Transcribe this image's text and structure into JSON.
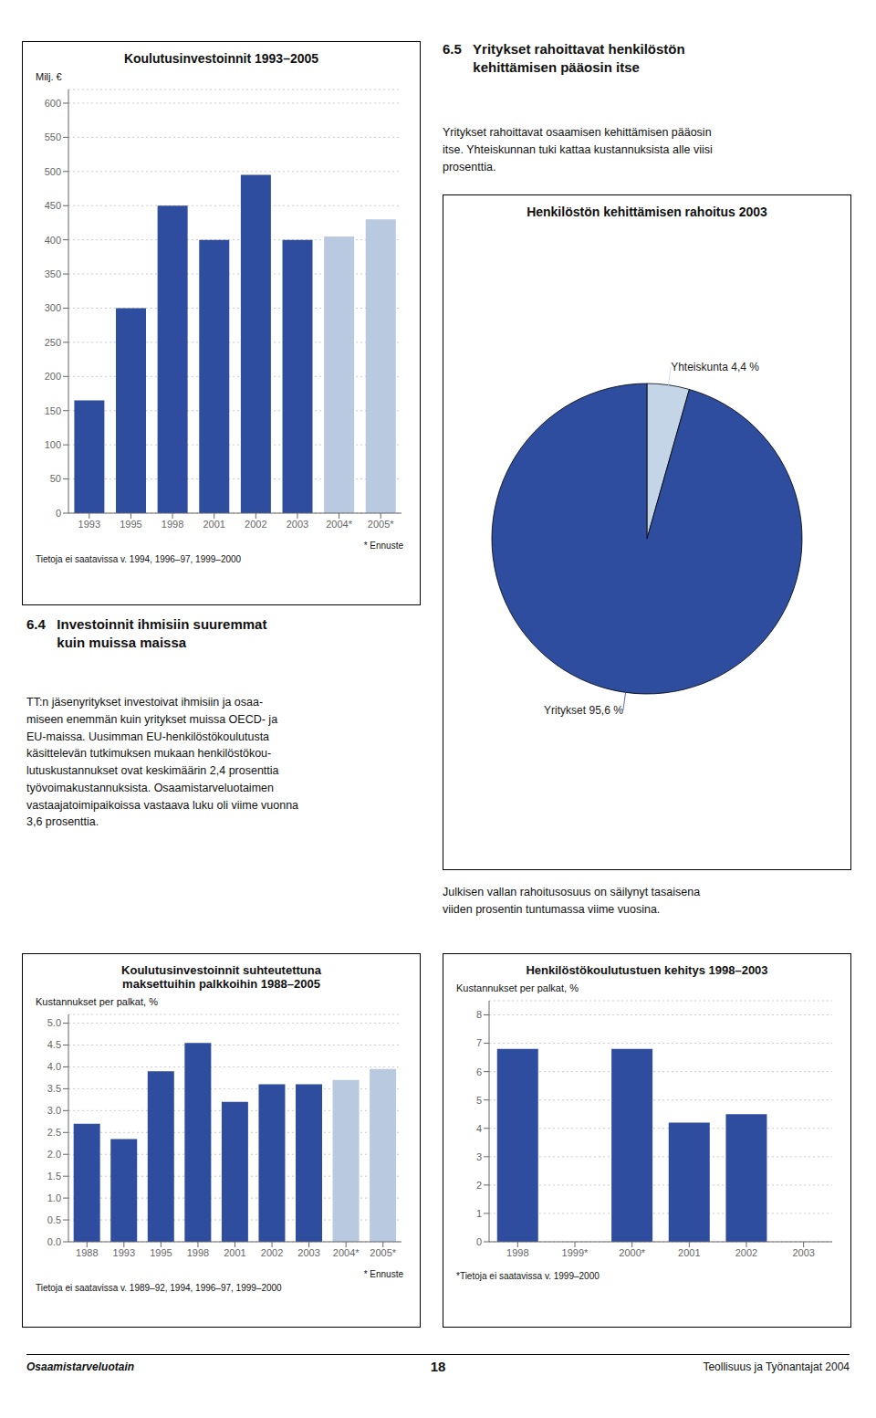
{
  "chart_data": [
    {
      "type": "bar",
      "title": "Koulutusinvestoinnit 1993–2005",
      "ylabel": "Milj. €",
      "categories": [
        "1993",
        "1995",
        "1998",
        "2001",
        "2002",
        "2003",
        "2004*",
        "2005*"
      ],
      "values": [
        165,
        300,
        450,
        400,
        495,
        400,
        405,
        430
      ],
      "colors": [
        "#2e4d9e",
        "#2e4d9e",
        "#2e4d9e",
        "#2e4d9e",
        "#2e4d9e",
        "#2e4d9e",
        "#b8c9e0",
        "#b8c9e0"
      ],
      "ylim": [
        0,
        620
      ],
      "yticks": [
        0,
        50,
        100,
        150,
        200,
        250,
        300,
        350,
        400,
        450,
        500,
        550,
        600
      ],
      "grid": true,
      "annotations": [
        "* Ennuste",
        "Tietoja ei saatavissa v. 1994, 1996–97, 1999–2000"
      ]
    },
    {
      "type": "pie",
      "title": "Henkilöstön kehittämisen rahoitus 2003",
      "categories": [
        "Yhteiskunta",
        "Yritykset"
      ],
      "values": [
        4.4,
        95.6
      ],
      "value_labels": [
        "Yhteiskunta 4,4 %",
        "Yritykset 95,6 %"
      ],
      "colors": [
        "#c5d5e8",
        "#2e4d9e"
      ],
      "data_labels": true
    },
    {
      "type": "bar",
      "title": "Koulutusinvestoinnit suhteutettuna\nmaksettuihin palkkoihin 1988–2005",
      "ylabel": "Kustannukset per palkat, %",
      "categories": [
        "1988",
        "1993",
        "1995",
        "1998",
        "2001",
        "2002",
        "2003",
        "2004*",
        "2005*"
      ],
      "values": [
        2.7,
        2.35,
        3.9,
        4.55,
        3.2,
        3.6,
        3.6,
        3.7,
        3.95
      ],
      "colors": [
        "#2e4d9e",
        "#2e4d9e",
        "#2e4d9e",
        "#2e4d9e",
        "#2e4d9e",
        "#2e4d9e",
        "#2e4d9e",
        "#b8c9e0",
        "#b8c9e0"
      ],
      "ylim": [
        0,
        5.2
      ],
      "yticks": [
        {
          "value": 0,
          "label": "0.0"
        },
        0.5,
        {
          "value": 1,
          "label": "1.0"
        },
        1.5,
        {
          "value": 2,
          "label": "2.0"
        },
        2.5,
        {
          "value": 3,
          "label": "3.0"
        },
        3.5,
        {
          "value": 4,
          "label": "4.0"
        },
        4.5,
        {
          "value": 5,
          "label": "5.0"
        }
      ],
      "grid": true,
      "annotations": [
        "* Ennuste",
        "Tietoja ei saatavissa v. 1989–92, 1994, 1996–97, 1999–2000"
      ]
    },
    {
      "type": "bar",
      "title": "Henkilöstökoulutustuen kehitys 1998–2003",
      "ylabel": "Kustannukset per palkat, %",
      "categories": [
        "1998",
        "1999*",
        "2000*",
        "2001",
        "2002",
        "2003"
      ],
      "values": [
        6.8,
        0,
        6.8,
        4.2,
        4.5,
        0
      ],
      "colors": [
        "#2e4d9e",
        "#2e4d9e",
        "#2e4d9e",
        "#2e4d9e",
        "#2e4d9e",
        "#2e4d9e"
      ],
      "ylim": [
        0,
        8.5
      ],
      "yticks": [
        0,
        1,
        2,
        3,
        4,
        5,
        6,
        7,
        8
      ],
      "grid": true,
      "annotations": [
        "*Tietoja ei saatavissa v. 1999–2000"
      ]
    }
  ],
  "annotations": [
    "6.5   Yritykset rahoittavat henkilöstön\n        kehittämisen pääosin itse",
    "Yritykset rahoittavat osaamisen kehittämisen pääosin\nitse. Yhteiskunnan tuki kattaa kustannuksista alle viisi\nprosenttia.",
    "6.4   Investoinnit ihmisiin suuremmat\n        kuin muissa maissa",
    "TT:n jäsenyritykset investoivat ihmisiin ja osaa-\nmiseen enemmän kuin yritykset muissa OECD- ja\nEU-maissa. Uusimman EU-henkilöstökoulutusta\nkäsittelevän tutkimuksen mukaan henkilöstökou-\nlutuskustannukset ovat keskimäärin 2,4 prosenttia\ntyövoimakustannuksista. Osaamistarveluotaimen\nvastaajatoimipaikoissa vastaava luku oli viime vuonna\n3,6 prosenttia.",
    "Julkisen vallan rahoitusosuus on säilynyt tasaisena\nviiden prosentin tuntumassa viime vuosina.",
    "Osaamistarveluotain",
    "18",
    "Teollisuus ja Työnantajat 2004"
  ]
}
